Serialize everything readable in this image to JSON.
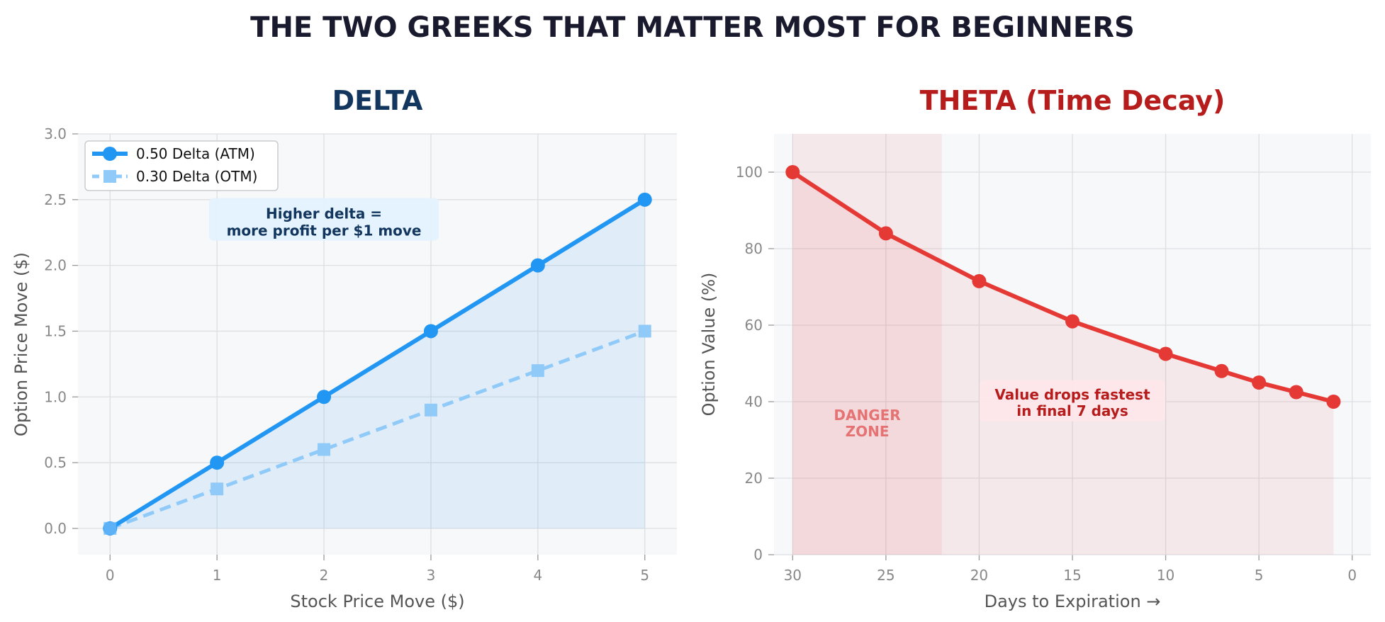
{
  "suptitle": "THE TWO GREEKS THAT MATTER MOST FOR BEGINNERS",
  "colors": {
    "title": "#1a1a2e",
    "delta_title": "#13365f",
    "theta_title": "#b71c1c",
    "atm": "#2196f3",
    "otm": "#90caf9",
    "theta": "#e53935",
    "plot_bg": "#f7f8fa",
    "grid": "#dcdfe3"
  },
  "chart_data": [
    {
      "type": "line",
      "title": "DELTA",
      "xlabel": "Stock Price Move ($)",
      "ylabel": "Option Price Move ($)",
      "x": [
        0,
        1,
        2,
        3,
        4,
        5
      ],
      "series": [
        {
          "name": "0.50 Delta (ATM)",
          "values": [
            0,
            0.5,
            1.0,
            1.5,
            2.0,
            2.5
          ],
          "marker": "circle",
          "style": "solid",
          "color": "#2196f3"
        },
        {
          "name": "0.30 Delta (OTM)",
          "values": [
            0,
            0.3,
            0.6,
            0.9,
            1.2,
            1.5
          ],
          "marker": "square",
          "style": "dashed",
          "color": "#90caf9"
        }
      ],
      "xlim": [
        -0.3,
        5.3
      ],
      "ylim": [
        -0.2,
        3.0
      ],
      "xticks": [
        "0",
        "1",
        "2",
        "3",
        "4",
        "5"
      ],
      "yticks": [
        "0.0",
        "0.5",
        "1.0",
        "1.5",
        "2.0",
        "2.5",
        "3.0"
      ],
      "grid": true,
      "legend": "upper-left",
      "fill_under": "0.50 Delta (ATM)",
      "annotations": [
        {
          "lines": [
            "Higher delta =",
            "more profit per $1 move"
          ],
          "x": 2.0,
          "y": 2.28
        }
      ]
    },
    {
      "type": "line",
      "title": "THETA (Time Decay)",
      "xlabel": "Days to Expiration →",
      "ylabel": "Option Value (%)",
      "x_inverted": true,
      "series": [
        {
          "x": [
            30,
            25,
            20,
            15,
            10,
            7,
            5,
            3,
            1
          ],
          "values": [
            100,
            84,
            71.5,
            61,
            52.5,
            48,
            45,
            42.5,
            40
          ],
          "marker": "circle",
          "color": "#e53935"
        }
      ],
      "xlim": [
        31,
        -1
      ],
      "ylim": [
        0,
        110
      ],
      "xticks": [
        "30",
        "25",
        "20",
        "15",
        "10",
        "5",
        "0"
      ],
      "yticks": [
        "0",
        "20",
        "40",
        "60",
        "80",
        "100"
      ],
      "grid": true,
      "shaded_region": {
        "x_from": 30,
        "x_to": 22
      },
      "annotations": [
        {
          "lines": [
            "DANGER",
            "ZONE"
          ],
          "x": 26,
          "y": 33
        },
        {
          "lines": [
            "Value drops fastest",
            "in final 7 days"
          ],
          "x": 15,
          "y": 38
        }
      ]
    }
  ]
}
